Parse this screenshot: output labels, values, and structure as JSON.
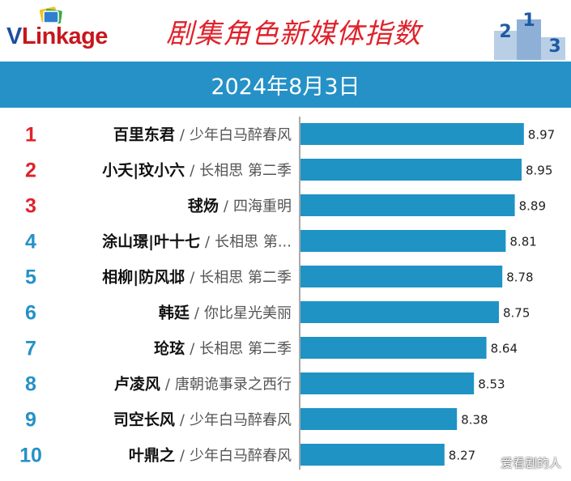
{
  "header": {
    "logo_v": "V",
    "logo_rest": "Link",
    "logo_tail": "age",
    "title": "剧集角色新媒体指数",
    "podium_labels": [
      "2",
      "1",
      "3"
    ],
    "date": "2024年8月3日"
  },
  "colors": {
    "bar": "#1f93c4",
    "rank_top": "#e0222b",
    "rank_rest": "#2591c7",
    "title": "#e0222b",
    "date_bar": "#2591c7"
  },
  "chart_data": {
    "type": "bar",
    "orientation": "horizontal",
    "title": "剧集角色新媒体指数",
    "subtitle": "2024年8月3日",
    "ranks": [
      "1",
      "2",
      "3",
      "4",
      "5",
      "6",
      "7",
      "8",
      "9",
      "10"
    ],
    "roles": [
      "百里东君",
      "小夭|玟小六",
      "毬炀",
      "涂山璟|叶十七",
      "相柳|防风邶",
      "韩廷",
      "玱玹",
      "卢凌风",
      "司空长风",
      "叶鼎之"
    ],
    "shows": [
      "少年白马醉春风",
      "长相思 第二季",
      "四海重明",
      "长相思 第...",
      "长相思 第二季",
      "你比星光美丽",
      "长相思 第二季",
      "唐朝诡事录之西行",
      "少年白马醉春风",
      "少年白马醉春风"
    ],
    "value_labels": [
      "8.97",
      "8.95",
      "8.89",
      "8.81",
      "8.78",
      "8.75",
      "8.64",
      "8.53",
      "8.38",
      "8.27"
    ],
    "values": [
      8.97,
      8.95,
      8.89,
      8.81,
      8.78,
      8.75,
      8.64,
      8.53,
      8.38,
      8.27
    ],
    "separator": "/",
    "grid": false,
    "legend": "none"
  },
  "watermark": "爱看剧的人"
}
